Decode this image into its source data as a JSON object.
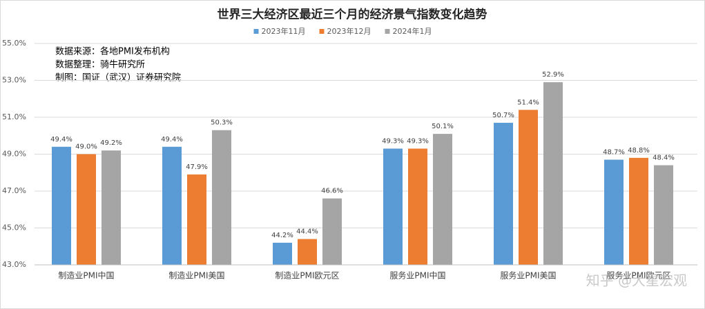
{
  "chart_data": {
    "type": "bar",
    "title": "世界三大经济区最近三个月的经济景气指数变化趋势",
    "annotations": [
      "数据来源：各地PMI发布机构",
      "数据整理：骑牛研究所",
      "制图：国证（武汉）证券研究院"
    ],
    "watermark": "知乎 @大星宏观",
    "categories": [
      "制造业PMI中国",
      "制造业PMI美国",
      "制造业PMI欧元区",
      "服务业PMI中国",
      "服务业PMI美国",
      "服务业PMI欧元区"
    ],
    "series": [
      {
        "name": "2023年11月",
        "color": "#5b9bd5",
        "values": [
          49.4,
          49.4,
          44.2,
          49.3,
          50.7,
          48.7
        ],
        "value_labels": [
          "49.4%",
          "49.4%",
          "44.2%",
          "49.3%",
          "50.7%",
          "48.7%"
        ]
      },
      {
        "name": "2023年12月",
        "color": "#ed7d31",
        "values": [
          49.0,
          47.9,
          44.4,
          49.3,
          51.4,
          48.8
        ],
        "value_labels": [
          "49.0%",
          "47.9%",
          "44.4%",
          "49.3%",
          "51.4%",
          "48.8%"
        ]
      },
      {
        "name": "2024年1月",
        "color": "#a5a5a5",
        "values": [
          49.2,
          50.3,
          46.6,
          50.1,
          52.9,
          48.4
        ],
        "value_labels": [
          "49.2%",
          "50.3%",
          "46.6%",
          "50.1%",
          "52.9%",
          "48.4%"
        ]
      }
    ],
    "ylim": [
      43,
      55
    ],
    "yticks": [
      {
        "value": 43,
        "label": "43.0%"
      },
      {
        "value": 45,
        "label": "45.0%"
      },
      {
        "value": 47,
        "label": "47.0%"
      },
      {
        "value": 49,
        "label": "49.0%"
      },
      {
        "value": 51,
        "label": "51.0%"
      },
      {
        "value": 53,
        "label": "53.0%"
      },
      {
        "value": 55,
        "label": "55.0%"
      }
    ],
    "grid": true,
    "legend": "top"
  }
}
